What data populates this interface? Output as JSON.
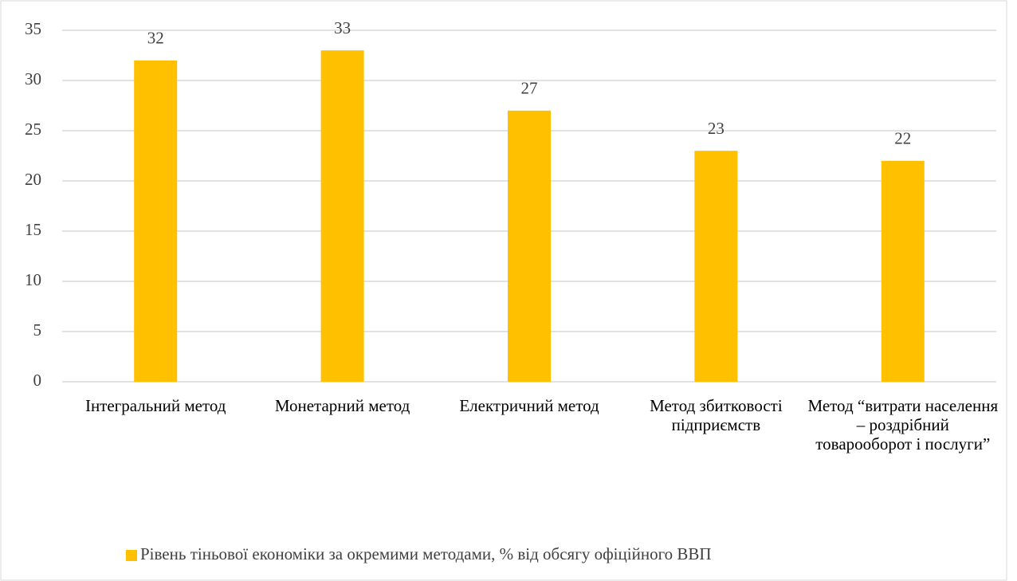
{
  "chart_data": {
    "type": "bar",
    "categories": [
      "Інтегральний метод",
      "Монетарний метод",
      "Електричний метод",
      "Метод збитковості підприємств",
      "Метод “витрати населення – роздрібний товарооборот і послуги”"
    ],
    "series": [
      {
        "name": "Рівень тіньової економіки за окремими методами, % від обсягу офіційного ВВП",
        "color": "#FFC000",
        "values": [
          32,
          33,
          27,
          23,
          22
        ]
      }
    ],
    "ylim": [
      0,
      35
    ],
    "yticks": [
      0,
      5,
      10,
      15,
      20,
      25,
      30,
      35
    ],
    "grid": true,
    "legend": "bottom"
  }
}
